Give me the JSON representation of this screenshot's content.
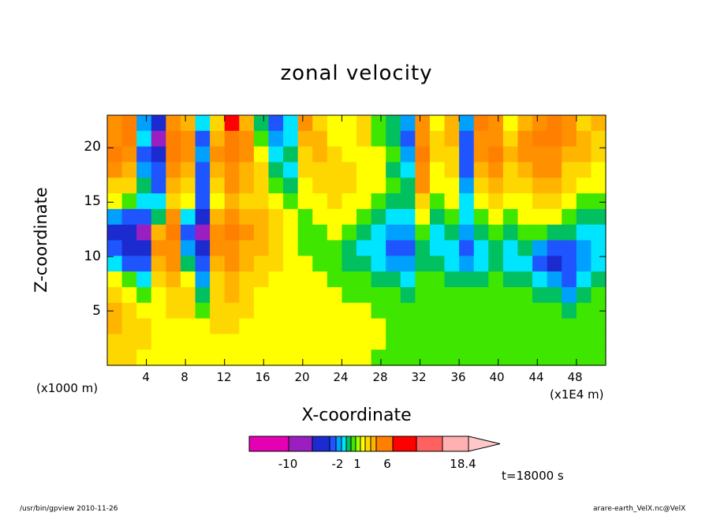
{
  "chart_data": {
    "type": "heatmap",
    "title": "zonal velocity",
    "xlabel": "X-coordinate",
    "ylabel": "Z-coordinate",
    "x_scale_note": "(x1000 m)",
    "x_scale_note_right": "(x1E4 m)",
    "x_ticks": [
      "4",
      "8",
      "12",
      "16",
      "20",
      "24",
      "28",
      "32",
      "36",
      "40",
      "44",
      "48"
    ],
    "y_ticks": [
      "5",
      "10",
      "15",
      "20"
    ],
    "xlim": [
      0,
      51
    ],
    "ylim": [
      0,
      23
    ],
    "colorbar": {
      "labels": [
        "-10",
        "-2",
        "1",
        "6",
        "18.4"
      ],
      "colors": [
        "#e600b4",
        "#9b1fc0",
        "#1c2bd0",
        "#1f55ff",
        "#00a0ff",
        "#00e5ff",
        "#00c060",
        "#3fe600",
        "#a0ff00",
        "#ffff00",
        "#ffd700",
        "#ffb400",
        "#ff8000",
        "#ff0000",
        "#ff6060",
        "#ffb0b0",
        "#ffc8c8"
      ]
    },
    "cells_note": "contour field approximated on a coarse grid; values in m/s",
    "grid_cols": 34,
    "grid_rows": 16,
    "field": [
      [
        4,
        6,
        -3,
        -8,
        5,
        3,
        -2,
        2,
        8,
        3,
        -1,
        -4,
        -2,
        4,
        2,
        1,
        1,
        2,
        0,
        -1,
        -3,
        4,
        1,
        3,
        -3,
        6,
        4,
        1,
        3,
        5,
        7,
        4,
        2,
        3
      ],
      [
        5,
        7,
        -2,
        -9,
        6,
        4,
        -4,
        3,
        7,
        4,
        0,
        -3,
        -2,
        3,
        3,
        1,
        1,
        2,
        0,
        -1,
        -4,
        5,
        2,
        3,
        -4,
        5,
        5,
        2,
        4,
        6,
        6,
        4,
        3,
        2
      ],
      [
        6,
        5,
        -4,
        -6,
        7,
        4,
        -3,
        4,
        6,
        4,
        1,
        -2,
        -1,
        2,
        3,
        2,
        1,
        1,
        1,
        0,
        -3,
        6,
        2,
        2,
        -5,
        4,
        6,
        3,
        4,
        5,
        5,
        3,
        3,
        2
      ],
      [
        4,
        3,
        -3,
        -5,
        5,
        3,
        -5,
        3,
        5,
        3,
        2,
        -1,
        -2,
        2,
        2,
        2,
        2,
        1,
        1,
        -1,
        -2,
        5,
        1,
        2,
        -4,
        3,
        5,
        2,
        3,
        4,
        4,
        2,
        2,
        1
      ],
      [
        2,
        2,
        -1,
        -4,
        3,
        2,
        -4,
        2,
        4,
        3,
        2,
        0,
        -1,
        1,
        2,
        2,
        2,
        1,
        1,
        0,
        -1,
        4,
        1,
        1,
        -3,
        2,
        3,
        2,
        2,
        3,
        3,
        2,
        1,
        1
      ],
      [
        1,
        0,
        -2,
        -2,
        2,
        1,
        -5,
        1,
        3,
        2,
        2,
        1,
        0,
        1,
        1,
        2,
        1,
        1,
        0,
        -1,
        -1,
        2,
        0,
        1,
        -2,
        1,
        2,
        1,
        1,
        2,
        2,
        1,
        0,
        0
      ],
      [
        -3,
        -4,
        -5,
        -1,
        4,
        -2,
        -7,
        3,
        5,
        3,
        3,
        2,
        1,
        0,
        1,
        1,
        1,
        0,
        -1,
        -2,
        -2,
        1,
        -1,
        0,
        -2,
        0,
        1,
        0,
        1,
        1,
        1,
        0,
        -1,
        -1
      ],
      [
        -6,
        -8,
        -9,
        3,
        6,
        -4,
        -9,
        5,
        6,
        4,
        3,
        2,
        1,
        0,
        0,
        1,
        0,
        -1,
        -2,
        -3,
        -3,
        0,
        -2,
        -1,
        -3,
        -1,
        0,
        -1,
        0,
        0,
        -1,
        -1,
        -2,
        -2
      ],
      [
        -5,
        -7,
        -6,
        4,
        5,
        -3,
        -8,
        4,
        5,
        3,
        3,
        2,
        1,
        0,
        0,
        0,
        -1,
        -2,
        -2,
        -4,
        -4,
        -1,
        -2,
        -2,
        -4,
        -2,
        -1,
        -2,
        -1,
        -3,
        -5,
        -4,
        -3,
        -2
      ],
      [
        -2,
        -4,
        -4,
        3,
        4,
        -1,
        -5,
        3,
        4,
        3,
        2,
        2,
        1,
        1,
        0,
        0,
        -1,
        -1,
        -2,
        -3,
        -3,
        -1,
        -1,
        -2,
        -3,
        -2,
        -1,
        -2,
        -2,
        -4,
        -6,
        -5,
        -3,
        -2
      ],
      [
        1,
        0,
        -2,
        2,
        3,
        1,
        -3,
        2,
        3,
        2,
        2,
        1,
        1,
        1,
        1,
        0,
        0,
        0,
        -1,
        -1,
        -2,
        0,
        0,
        -1,
        -1,
        -1,
        0,
        -1,
        -1,
        -2,
        -3,
        -4,
        -2,
        -1
      ],
      [
        2,
        1,
        0,
        1,
        2,
        2,
        -1,
        2,
        3,
        2,
        1,
        1,
        1,
        1,
        1,
        1,
        0,
        0,
        0,
        0,
        -1,
        0,
        0,
        0,
        0,
        0,
        0,
        0,
        0,
        -1,
        -1,
        -3,
        -1,
        0
      ],
      [
        3,
        2,
        1,
        1,
        2,
        2,
        0,
        2,
        2,
        2,
        1,
        1,
        1,
        1,
        1,
        1,
        1,
        1,
        0,
        0,
        0,
        0,
        0,
        0,
        0,
        0,
        0,
        0,
        0,
        0,
        0,
        -1,
        0,
        0
      ],
      [
        3,
        2,
        2,
        1,
        1,
        1,
        1,
        2,
        2,
        1,
        1,
        1,
        1,
        1,
        1,
        1,
        1,
        1,
        1,
        0,
        0,
        0,
        0,
        0,
        0,
        0,
        0,
        0,
        0,
        0,
        0,
        0,
        0,
        0
      ],
      [
        2,
        2,
        2,
        1,
        1,
        1,
        1,
        1,
        1,
        1,
        1,
        1,
        1,
        1,
        1,
        1,
        1,
        1,
        1,
        0,
        0,
        0,
        0,
        0,
        0,
        0,
        0,
        0,
        0,
        0,
        0,
        0,
        0,
        0
      ],
      [
        2,
        2,
        1,
        1,
        1,
        1,
        1,
        1,
        1,
        1,
        1,
        1,
        1,
        1,
        1,
        1,
        1,
        1,
        0,
        0,
        0,
        0,
        0,
        0,
        0,
        0,
        0,
        0,
        0,
        0,
        0,
        0,
        0,
        0
      ]
    ]
  },
  "time_label": "t=18000 s",
  "footer_left": "/usr/bin/gpview   2010-11-26",
  "footer_right": "arare-earth_VelX.nc@VelX"
}
